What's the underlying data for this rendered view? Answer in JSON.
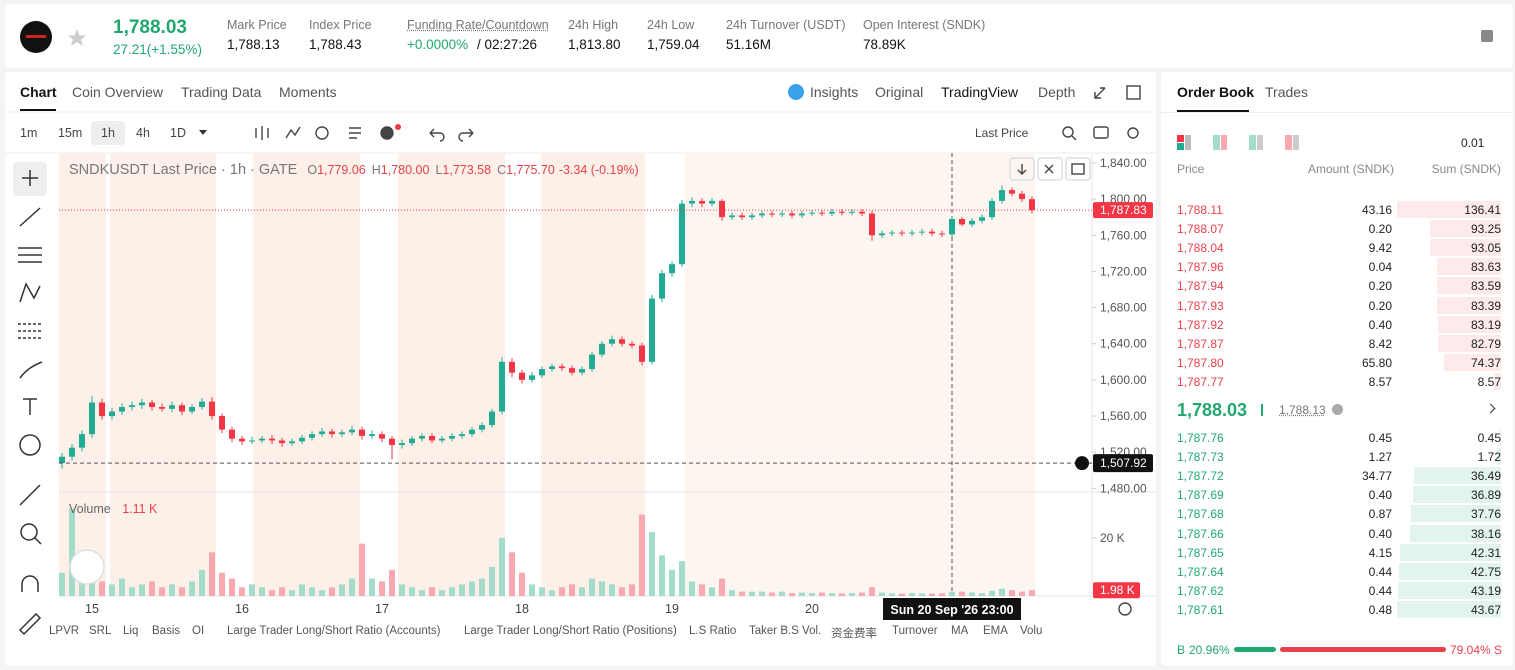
{
  "header": {
    "price": "1,788.03",
    "change": "27.21(+1.55%)",
    "stats": [
      {
        "label": "Mark Price",
        "value": "1,788.13"
      },
      {
        "label": "Index Price",
        "value": "1,788.43"
      },
      {
        "label": "Funding Rate/Countdown",
        "value": "+0.0000%",
        "extra": "/ 02:27:26"
      },
      {
        "label": "24h High",
        "value": "1,813.80"
      },
      {
        "label": "24h Low",
        "value": "1,759.04"
      },
      {
        "label": "24h Turnover (USDT)",
        "value": "51.16M"
      },
      {
        "label": "Open Interest (SNDK)",
        "value": "78.89K"
      }
    ]
  },
  "chart_tabs": [
    "Chart",
    "Coin Overview",
    "Trading Data",
    "Moments"
  ],
  "view_tabs": [
    "Insights",
    "Original",
    "TradingView",
    "Depth"
  ],
  "intervals": [
    "1m",
    "15m",
    "1h",
    "4h",
    "1D"
  ],
  "price_type": "Last Price",
  "indicators": [
    "LPVR",
    "SRL",
    "Liq",
    "Basis",
    "OI",
    "Large Trader Long/Short Ratio (Accounts)",
    "Large Trader Long/Short Ratio (Positions)",
    "L.S Ratio",
    "Taker B.S Vol.",
    "资金费率",
    "Turnover",
    "MA",
    "EMA",
    "Volu"
  ],
  "chart_data": {
    "type": "candlestick",
    "legend": {
      "title": "SNDKUSDT Last Price · 1h · GATE",
      "ohlc": [
        {
          "k": "O",
          "v": "1,779.06"
        },
        {
          "k": "H",
          "v": "1,780.00"
        },
        {
          "k": "L",
          "v": "1,773.58"
        },
        {
          "k": "C",
          "v": "1,775.70"
        }
      ],
      "change": "-3.34 (-0.19%)",
      "volume_title": "Volume",
      "volume_value": "1.11 K"
    },
    "up_color": "#22ab94",
    "down_color": "#f23645",
    "volume_up_color": "#a3dccb",
    "volume_down_color": "#f7a8b0",
    "categories": [
      null,
      null,
      null,
      "15",
      null,
      null,
      null,
      null,
      null,
      null,
      null,
      null,
      null,
      null,
      null,
      null,
      null,
      null,
      "16",
      null,
      null,
      null,
      null,
      null,
      null,
      null,
      null,
      null,
      null,
      null,
      null,
      null,
      "17",
      null,
      null,
      null,
      null,
      null,
      null,
      null,
      null,
      null,
      null,
      null,
      null,
      null,
      "18",
      null,
      null,
      null,
      null,
      null,
      null,
      null,
      null,
      null,
      null,
      null,
      null,
      null,
      null,
      "19",
      null,
      null,
      null,
      null,
      null,
      null,
      null,
      null,
      null,
      null,
      null,
      null,
      null,
      "20",
      null,
      null,
      null,
      null,
      null,
      null,
      null,
      null,
      null,
      null,
      null,
      null,
      null,
      null,
      null,
      null,
      null,
      null,
      null,
      null,
      null,
      null
    ],
    "open": [
      1508,
      1515,
      1525,
      1540,
      1575,
      1560,
      1565,
      1570,
      1572,
      1575,
      1570,
      1568,
      1572,
      1565,
      1570,
      1576,
      1560,
      1545,
      1535,
      1532,
      1533,
      1535,
      1533,
      1530,
      1532,
      1536,
      1540,
      1543,
      1540,
      1542,
      1545,
      1538,
      1540,
      1535,
      1528,
      1530,
      1535,
      1538,
      1533,
      1535,
      1538,
      1540,
      1545,
      1550,
      1565,
      1620,
      1608,
      1600,
      1605,
      1612,
      1615,
      1613,
      1608,
      1612,
      1628,
      1640,
      1645,
      1640,
      1638,
      1620,
      1690,
      1718,
      1728,
      1795,
      1798,
      1795,
      1798,
      1780,
      1782,
      1780,
      1782,
      1784,
      1783,
      1784,
      1782,
      1784,
      1785,
      1784,
      1786,
      1785,
      1786,
      1784,
      1760,
      1762,
      1763,
      1762,
      1763,
      1764,
      1762,
      1761,
      1778,
      1772,
      1776,
      1780,
      1798,
      1810,
      1806,
      1800
    ],
    "high": [
      1519,
      1529,
      1544,
      1582,
      1579,
      1569,
      1574,
      1576,
      1579,
      1578,
      1574,
      1576,
      1575,
      1573,
      1580,
      1581,
      1563,
      1548,
      1538,
      1537,
      1538,
      1539,
      1536,
      1535,
      1539,
      1543,
      1547,
      1546,
      1545,
      1549,
      1548,
      1544,
      1543,
      1538,
      1534,
      1538,
      1541,
      1541,
      1538,
      1541,
      1543,
      1548,
      1553,
      1568,
      1625,
      1624,
      1611,
      1609,
      1615,
      1618,
      1618,
      1616,
      1615,
      1631,
      1643,
      1649,
      1648,
      1643,
      1641,
      1694,
      1722,
      1731,
      1799,
      1802,
      1801,
      1801,
      1800,
      1785,
      1785,
      1785,
      1787,
      1787,
      1787,
      1787,
      1787,
      1788,
      1788,
      1789,
      1789,
      1789,
      1789,
      1787,
      1765,
      1766,
      1766,
      1766,
      1767,
      1767,
      1765,
      1781,
      1780,
      1779,
      1783,
      1801,
      1815,
      1813,
      1809,
      1803
    ],
    "low": [
      1502,
      1511,
      1521,
      1536,
      1556,
      1556,
      1561,
      1566,
      1568,
      1566,
      1565,
      1564,
      1561,
      1562,
      1567,
      1556,
      1541,
      1531,
      1528,
      1529,
      1530,
      1529,
      1526,
      1527,
      1529,
      1533,
      1537,
      1536,
      1537,
      1539,
      1534,
      1535,
      1531,
      1512,
      1524,
      1527,
      1532,
      1530,
      1530,
      1532,
      1535,
      1537,
      1542,
      1547,
      1562,
      1603,
      1596,
      1597,
      1602,
      1609,
      1610,
      1605,
      1605,
      1609,
      1625,
      1637,
      1637,
      1635,
      1616,
      1617,
      1686,
      1714,
      1725,
      1791,
      1791,
      1792,
      1776,
      1777,
      1777,
      1777,
      1779,
      1780,
      1780,
      1779,
      1779,
      1781,
      1781,
      1781,
      1782,
      1782,
      1781,
      1754,
      1757,
      1759,
      1759,
      1759,
      1760,
      1759,
      1758,
      1758,
      1770,
      1769,
      1773,
      1777,
      1795,
      1803,
      1797,
      1784
    ],
    "close": [
      1515,
      1525,
      1540,
      1575,
      1560,
      1565,
      1570,
      1572,
      1575,
      1570,
      1568,
      1572,
      1565,
      1570,
      1576,
      1560,
      1545,
      1535,
      1532,
      1533,
      1535,
      1533,
      1530,
      1532,
      1536,
      1540,
      1543,
      1540,
      1542,
      1545,
      1538,
      1540,
      1535,
      1528,
      1530,
      1535,
      1538,
      1533,
      1535,
      1538,
      1540,
      1545,
      1550,
      1565,
      1620,
      1608,
      1600,
      1605,
      1612,
      1615,
      1613,
      1608,
      1612,
      1628,
      1640,
      1645,
      1640,
      1638,
      1620,
      1690,
      1718,
      1728,
      1795,
      1798,
      1795,
      1798,
      1780,
      1782,
      1780,
      1782,
      1784,
      1783,
      1784,
      1782,
      1784,
      1785,
      1784,
      1786,
      1785,
      1786,
      1784,
      1760,
      1762,
      1763,
      1762,
      1763,
      1764,
      1762,
      1761,
      1778,
      1772,
      1776,
      1780,
      1798,
      1810,
      1806,
      1800,
      1787.83
    ],
    "volume": [
      8000,
      30000,
      12000,
      9000,
      5000,
      4000,
      6000,
      3000,
      4000,
      5000,
      3000,
      4000,
      3000,
      5000,
      9000,
      15000,
      8000,
      6000,
      3000,
      4000,
      3000,
      2000,
      3000,
      2000,
      4000,
      3000,
      2000,
      3000,
      4000,
      6000,
      18000,
      6000,
      5000,
      9000,
      4000,
      3000,
      2000,
      3000,
      2000,
      3000,
      4000,
      5000,
      6000,
      10000,
      20000,
      15000,
      8000,
      4000,
      3000,
      2000,
      3000,
      4000,
      3000,
      6000,
      5000,
      4000,
      3000,
      4000,
      28000,
      22000,
      14000,
      9000,
      12000,
      5000,
      4000,
      3000,
      6000,
      2000,
      1500,
      1500,
      1500,
      1200,
      1500,
      1000,
      1200,
      1000,
      1200,
      1000,
      900,
      1000,
      1200,
      3000,
      1200,
      900,
      800,
      1000,
      900,
      800,
      900,
      1500,
      1500,
      1200,
      1000,
      1800,
      2500,
      2000,
      1500,
      1980
    ],
    "ylim": [
      1476,
      1851
    ],
    "yticks": [
      {
        "value": 1480,
        "label": "1,480.00"
      },
      {
        "value": 1520,
        "label": "1,520.00"
      },
      {
        "value": 1560,
        "label": "1,560.00"
      },
      {
        "value": 1600,
        "label": "1,600.00"
      },
      {
        "value": 1640,
        "label": "1,640.00"
      },
      {
        "value": 1680,
        "label": "1,680.00"
      },
      {
        "value": 1720,
        "label": "1,720.00"
      },
      {
        "value": 1760,
        "label": "1,760.00"
      },
      {
        "value": 1800,
        "label": "1,800.00"
      },
      {
        "value": 1840,
        "label": "1,840.00"
      }
    ],
    "volume_ylim": [
      0,
      33000
    ],
    "volume_yticks": [
      {
        "value": 20000,
        "label": "20 K"
      }
    ],
    "last_price": {
      "value": 1787.83,
      "label": "1,787.83"
    },
    "crosshair_price": {
      "value": 1507.92,
      "label": "1,507.92"
    },
    "last_volume": {
      "value": 1980,
      "label": "1.98 K"
    },
    "crosshair_time": "Sun 20 Sep '26   23:00"
  },
  "order_book": {
    "tabs": [
      "Order Book",
      "Trades"
    ],
    "precision": "0.01",
    "columns": [
      "Price",
      "Amount (SNDK)",
      "Sum (SNDK)"
    ],
    "asks": [
      {
        "price": "1,788.11",
        "amount": "43.16",
        "sum": 136.41
      },
      {
        "price": "1,788.07",
        "amount": "0.20",
        "sum": 93.25
      },
      {
        "price": "1,788.04",
        "amount": "9.42",
        "sum": 93.05
      },
      {
        "price": "1,787.96",
        "amount": "0.04",
        "sum": 83.63
      },
      {
        "price": "1,787.94",
        "amount": "0.20",
        "sum": 83.59
      },
      {
        "price": "1,787.93",
        "amount": "0.20",
        "sum": 83.39
      },
      {
        "price": "1,787.92",
        "amount": "0.40",
        "sum": 83.19
      },
      {
        "price": "1,787.87",
        "amount": "8.42",
        "sum": 82.79
      },
      {
        "price": "1,787.80",
        "amount": "65.80",
        "sum": 74.37
      },
      {
        "price": "1,787.77",
        "amount": "8.57",
        "sum": 8.57
      }
    ],
    "mid_price": "1,788.03",
    "mark_price": "1,788.13",
    "bids": [
      {
        "price": "1,787.76",
        "amount": "0.45",
        "sum": 0.45
      },
      {
        "price": "1,787.73",
        "amount": "1.27",
        "sum": 1.72
      },
      {
        "price": "1,787.72",
        "amount": "34.77",
        "sum": 36.49
      },
      {
        "price": "1,787.69",
        "amount": "0.40",
        "sum": 36.89
      },
      {
        "price": "1,787.68",
        "amount": "0.87",
        "sum": 37.76
      },
      {
        "price": "1,787.66",
        "amount": "0.40",
        "sum": 38.16
      },
      {
        "price": "1,787.65",
        "amount": "4.15",
        "sum": 42.31
      },
      {
        "price": "1,787.64",
        "amount": "0.44",
        "sum": 42.75
      },
      {
        "price": "1,787.62",
        "amount": "0.44",
        "sum": 43.19
      },
      {
        "price": "1,787.61",
        "amount": "0.48",
        "sum": 43.67
      }
    ],
    "ratio": {
      "buy_tag": "B",
      "buy": 20.96,
      "buy_label": "20.96%",
      "sell": 79.04,
      "sell_label": "79.04%",
      "sell_tag": "S"
    }
  }
}
